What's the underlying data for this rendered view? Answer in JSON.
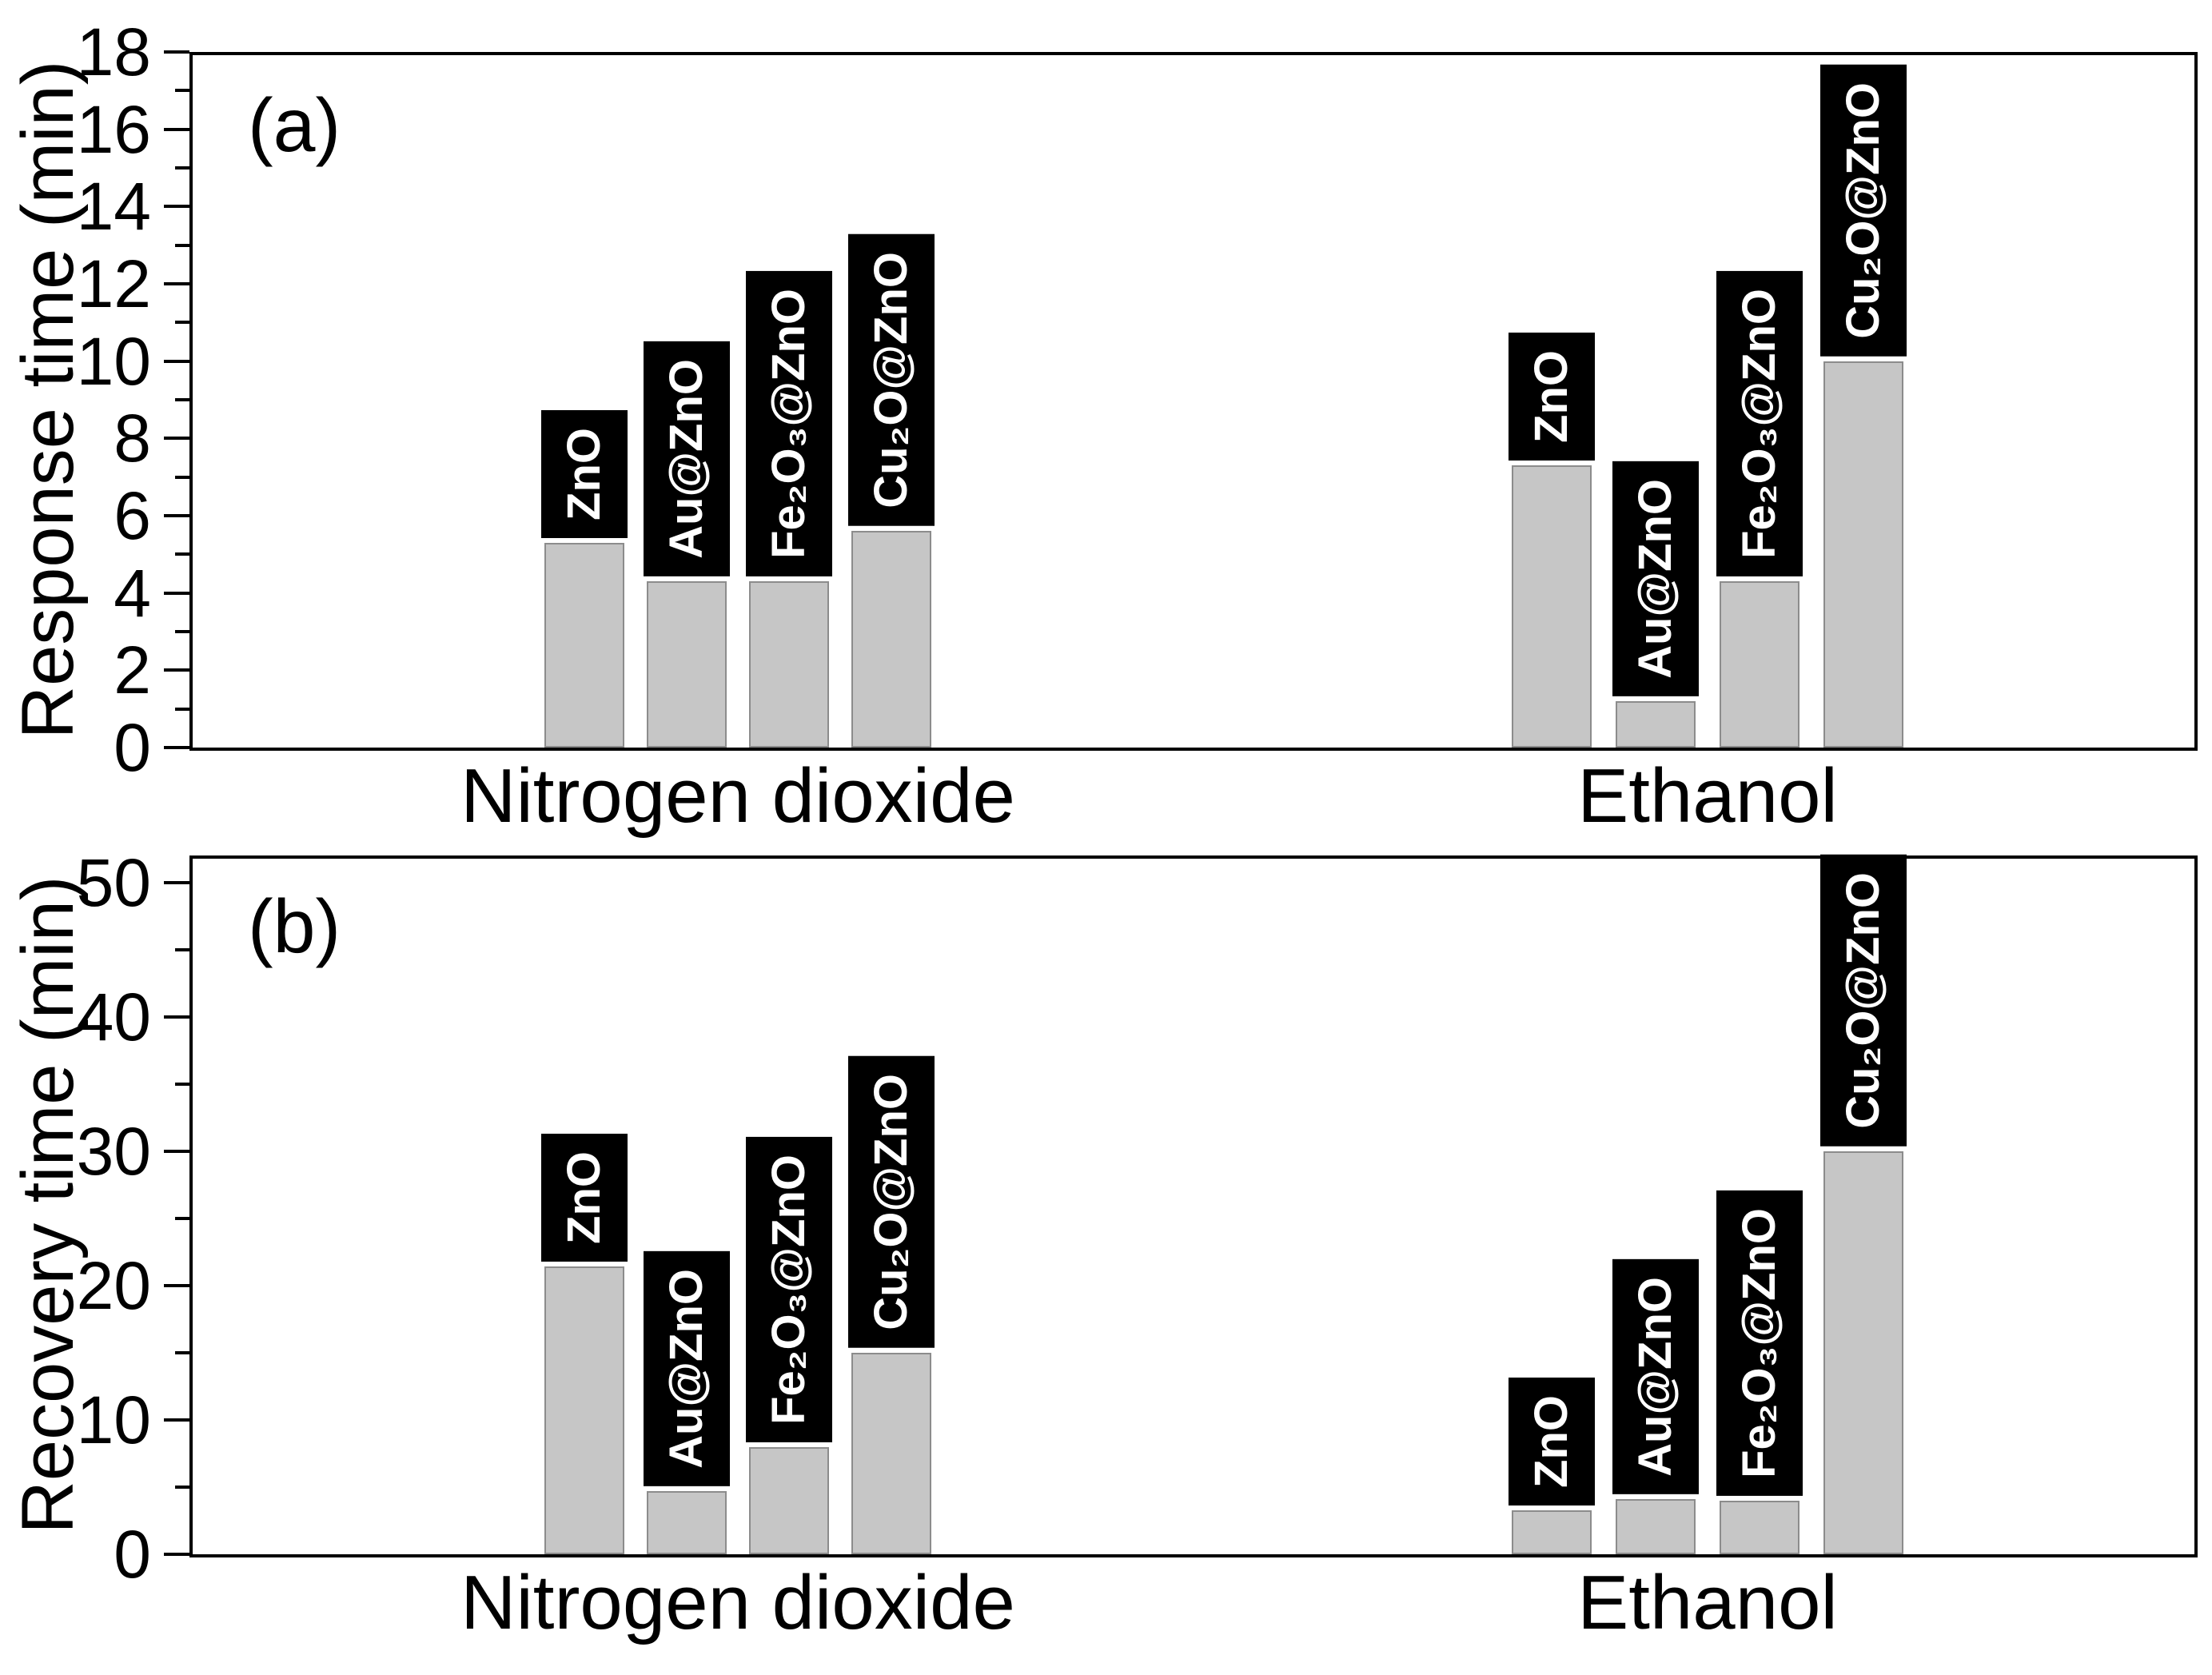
{
  "style": {
    "bar_fill": "#c6c6c6",
    "bar_border": "#8c8c8c",
    "label_box_bg": "#000000",
    "label_box_text": "#ffffff",
    "axis_color": "#000000",
    "background": "#ffffff"
  },
  "chart_data": [
    {
      "type": "bar",
      "panel_letter": "(a)",
      "ylabel": "Response time (min)",
      "ylim": [
        0,
        18
      ],
      "yticks": {
        "major_step": 2,
        "minor_step": 1,
        "max_labeled": 18
      },
      "grid": "off",
      "legend": "none",
      "categories": [
        "Nitrogen dioxide",
        "Ethanol"
      ],
      "bar_labels": [
        "ZnO",
        "Au@ZnO",
        "Fe₂O₃@ZnO",
        "Cu₂O@ZnO"
      ],
      "series": [
        {
          "category": "Nitrogen dioxide",
          "values": [
            5.3,
            4.3,
            4.3,
            5.6
          ]
        },
        {
          "category": "Ethanol",
          "values": [
            7.3,
            1.2,
            4.3,
            10.0
          ]
        }
      ]
    },
    {
      "type": "bar",
      "panel_letter": "(b)",
      "ylabel": "Recovery time (min)",
      "ylim": [
        0,
        52
      ],
      "yticks": {
        "major_step": 10,
        "minor_step": 5,
        "max_labeled": 50
      },
      "grid": "off",
      "legend": "none",
      "categories": [
        "Nitrogen dioxide",
        "Ethanol"
      ],
      "bar_labels": [
        "ZnO",
        "Au@ZnO",
        "Fe₂O₃@ZnO",
        "Cu₂O@ZnO"
      ],
      "series": [
        {
          "category": "Nitrogen dioxide",
          "values": [
            21.4,
            4.7,
            8.0,
            15.0
          ]
        },
        {
          "category": "Ethanol",
          "values": [
            3.3,
            4.1,
            4.0,
            30.0
          ]
        }
      ]
    }
  ]
}
